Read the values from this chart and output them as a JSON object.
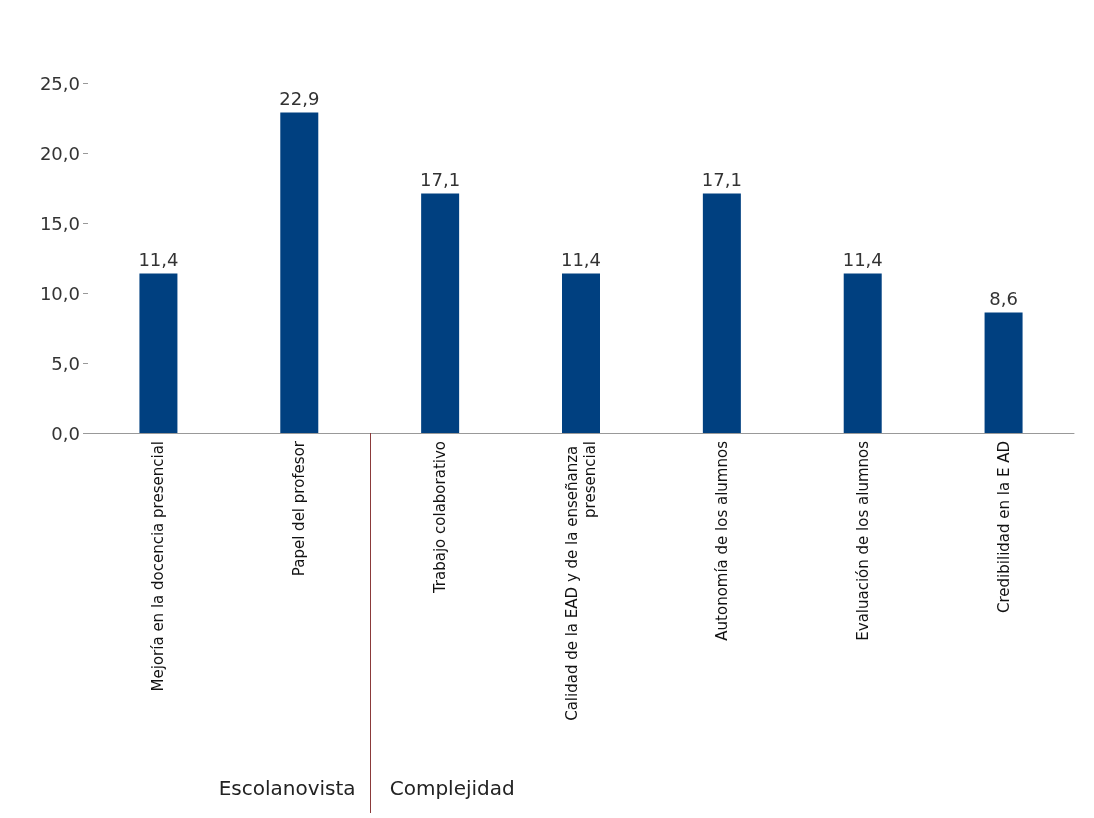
{
  "chart_data": {
    "type": "bar",
    "categories": [
      "Mejoría en la docencia presencial",
      "Papel del profesor",
      "Trabajo colaborativo",
      "Calidad de la EAD y de la enseñanza presencial",
      "Autonomía de los alumnos",
      "Evaluación de los alumnos",
      "Credibilidad en la E AD"
    ],
    "values": [
      11.4,
      22.9,
      17.1,
      11.4,
      17.1,
      11.4,
      8.6
    ],
    "value_labels": [
      "11,4",
      "22,9",
      "17,1",
      "11,4",
      "17,1",
      "11,4",
      "8,6"
    ],
    "color": "#004080",
    "ylim": [
      0,
      25
    ],
    "yticks": [
      {
        "value": 0,
        "label": "0,0"
      },
      {
        "value": 5,
        "label": "5,0"
      },
      {
        "value": 10,
        "label": "10,0"
      },
      {
        "value": 15,
        "label": "15,0"
      },
      {
        "value": 20,
        "label": "20,0"
      },
      {
        "value": 25,
        "label": "25,0"
      }
    ],
    "grid": false,
    "annotations": [
      "Escolanovista",
      "Complejidad"
    ]
  }
}
